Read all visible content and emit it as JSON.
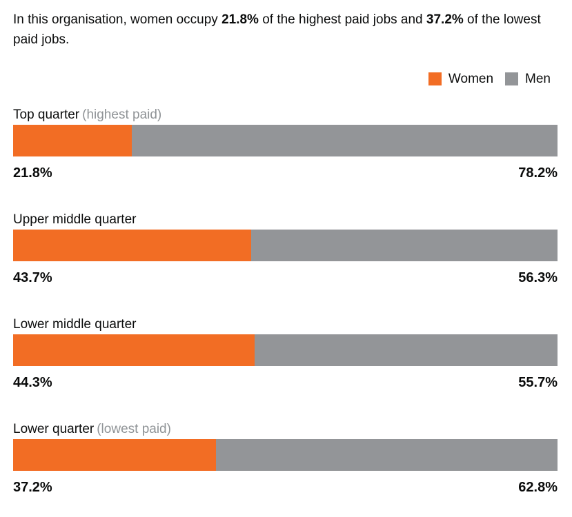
{
  "intro": {
    "part1": "In this organisation, women occupy ",
    "value1": "21.8%",
    "part2": " of the highest paid jobs and ",
    "value2": "37.2%",
    "part3": " of the lowest paid jobs."
  },
  "legend": {
    "women": "Women",
    "men": "Men"
  },
  "colors": {
    "women": "#f26d24",
    "men": "#939598",
    "text": "#0b0c0c",
    "muted": "#8f9396"
  },
  "rows": [
    {
      "label": "Top quarter",
      "note": "(highest paid)",
      "women_value": 21.8,
      "men_value": 78.2,
      "women_pct": "21.8%",
      "men_pct": "78.2%"
    },
    {
      "label": "Upper middle quarter",
      "note": "",
      "women_value": 43.7,
      "men_value": 56.3,
      "women_pct": "43.7%",
      "men_pct": "56.3%"
    },
    {
      "label": "Lower middle quarter",
      "note": "",
      "women_value": 44.3,
      "men_value": 55.7,
      "women_pct": "44.3%",
      "men_pct": "55.7%"
    },
    {
      "label": "Lower quarter",
      "note": "(lowest paid)",
      "women_value": 37.2,
      "men_value": 62.8,
      "women_pct": "37.2%",
      "men_pct": "62.8%"
    }
  ],
  "chart_data": {
    "type": "bar",
    "orientation": "horizontal-stacked",
    "title": "In this organisation, women occupy 21.8% of the highest paid jobs and 37.2% of the lowest paid jobs.",
    "categories": [
      "Top quarter (highest paid)",
      "Upper middle quarter",
      "Lower middle quarter",
      "Lower quarter (lowest paid)"
    ],
    "series": [
      {
        "name": "Women",
        "color": "#f26d24",
        "values": [
          21.8,
          43.7,
          44.3,
          37.2
        ]
      },
      {
        "name": "Men",
        "color": "#939598",
        "values": [
          78.2,
          56.3,
          55.7,
          62.8
        ]
      }
    ],
    "value_unit": "%",
    "xlim": [
      0,
      100
    ],
    "legend_position": "top-right",
    "grid": false,
    "data_labels": "below-bar, women left-aligned, men right-aligned, bold"
  }
}
